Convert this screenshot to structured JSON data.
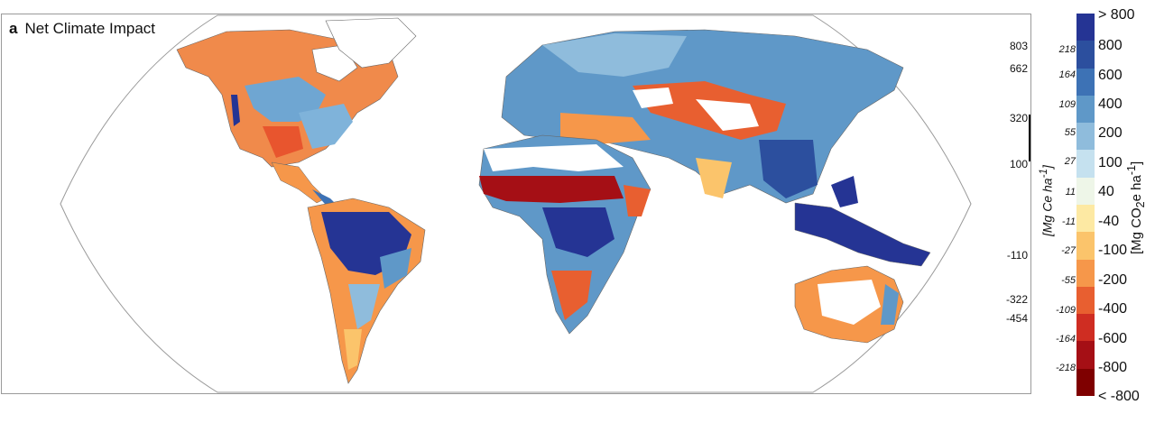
{
  "panel": {
    "letter": "a",
    "title": "Net Climate Impact"
  },
  "left_axis_ticks": [
    "803",
    "662",
    "320",
    "100",
    "-110",
    "-322",
    "-454"
  ],
  "legend": {
    "unit_mgce": "[Mg Ce ha",
    "unit_mgce_sup": "-1",
    "unit_co2_prefix": "[Mg CO",
    "unit_co2_sub": "2",
    "unit_co2_mid": "e ha",
    "unit_co2_sup": "-1",
    "mgce_labels": [
      "218",
      "164",
      "109",
      "55",
      "27",
      "11",
      "-11",
      "-27",
      "-55",
      "-109",
      "-164",
      "-218"
    ],
    "co2_labels": [
      "> 800",
      "800",
      "600",
      "400",
      "200",
      "100",
      "40",
      "-40",
      "-100",
      "-200",
      "-400",
      "-600",
      "-800",
      "< -800"
    ],
    "colors": [
      "#253494",
      "#2c4f9e",
      "#3d72b5",
      "#5f98c8",
      "#8fbcdc",
      "#c5e1ef",
      "#eef6e8",
      "#fde9a3",
      "#fbc46b",
      "#f6974a",
      "#e85f30",
      "#cf2d22",
      "#a50f15",
      "#7f0000"
    ]
  },
  "map_colors": {
    "ocean": "#ffffff",
    "land_border": "#555555",
    "frame": "#888888"
  }
}
